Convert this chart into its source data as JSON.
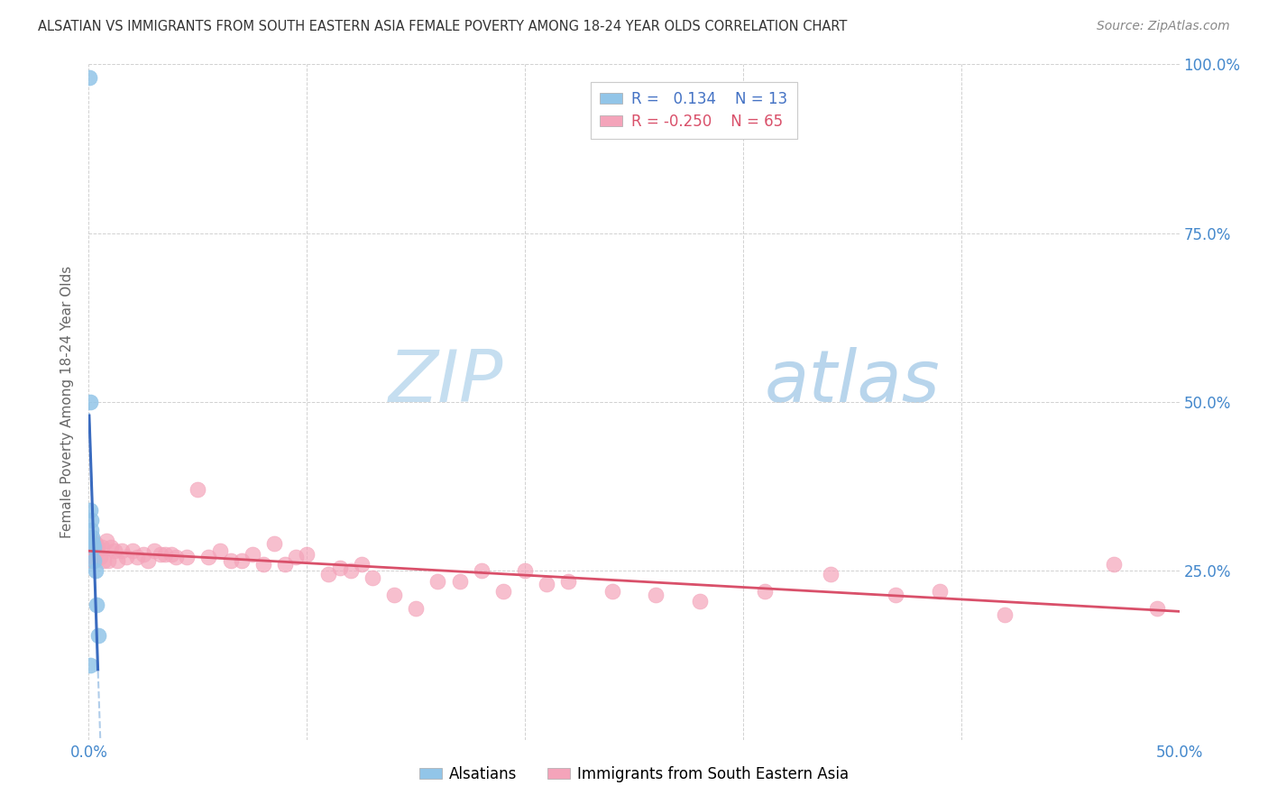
{
  "title": "ALSATIAN VS IMMIGRANTS FROM SOUTH EASTERN ASIA FEMALE POVERTY AMONG 18-24 YEAR OLDS CORRELATION CHART",
  "source": "Source: ZipAtlas.com",
  "ylabel": "Female Poverty Among 18-24 Year Olds",
  "xlim": [
    0.0,
    0.5
  ],
  "ylim": [
    0.0,
    1.0
  ],
  "alsatian_color": "#92C5E8",
  "sea_color": "#F4A4BA",
  "alsatian_line_color": "#3A6BBF",
  "sea_line_color": "#D9506A",
  "alsatian_trend_color": "#A8C8E8",
  "watermark_zip_color": "#C8DFF0",
  "watermark_atlas_color": "#C8DFF0",
  "alsatian_points_x": [
    0.0002,
    0.0005,
    0.0008,
    0.001,
    0.0012,
    0.0015,
    0.002,
    0.0022,
    0.0025,
    0.003,
    0.0035,
    0.0042,
    0.0005
  ],
  "alsatian_points_y": [
    0.98,
    0.5,
    0.34,
    0.325,
    0.31,
    0.3,
    0.29,
    0.285,
    0.265,
    0.25,
    0.2,
    0.155,
    0.11
  ],
  "sea_points_x": [
    0.0005,
    0.001,
    0.0012,
    0.0015,
    0.002,
    0.0022,
    0.0025,
    0.003,
    0.0035,
    0.004,
    0.005,
    0.006,
    0.007,
    0.008,
    0.009,
    0.01,
    0.012,
    0.013,
    0.015,
    0.017,
    0.02,
    0.022,
    0.025,
    0.027,
    0.03,
    0.033,
    0.035,
    0.038,
    0.04,
    0.045,
    0.05,
    0.055,
    0.06,
    0.065,
    0.07,
    0.075,
    0.08,
    0.085,
    0.09,
    0.095,
    0.1,
    0.11,
    0.115,
    0.12,
    0.125,
    0.13,
    0.14,
    0.15,
    0.16,
    0.17,
    0.18,
    0.19,
    0.2,
    0.21,
    0.22,
    0.24,
    0.26,
    0.28,
    0.31,
    0.34,
    0.37,
    0.39,
    0.42,
    0.47,
    0.49
  ],
  "sea_points_y": [
    0.295,
    0.29,
    0.275,
    0.265,
    0.295,
    0.285,
    0.27,
    0.29,
    0.28,
    0.285,
    0.27,
    0.285,
    0.265,
    0.295,
    0.265,
    0.285,
    0.28,
    0.265,
    0.28,
    0.27,
    0.28,
    0.27,
    0.275,
    0.265,
    0.28,
    0.275,
    0.275,
    0.275,
    0.27,
    0.27,
    0.37,
    0.27,
    0.28,
    0.265,
    0.265,
    0.275,
    0.26,
    0.29,
    0.26,
    0.27,
    0.275,
    0.245,
    0.255,
    0.25,
    0.26,
    0.24,
    0.215,
    0.195,
    0.235,
    0.235,
    0.25,
    0.22,
    0.25,
    0.23,
    0.235,
    0.22,
    0.215,
    0.205,
    0.22,
    0.245,
    0.215,
    0.22,
    0.185,
    0.26,
    0.195
  ]
}
